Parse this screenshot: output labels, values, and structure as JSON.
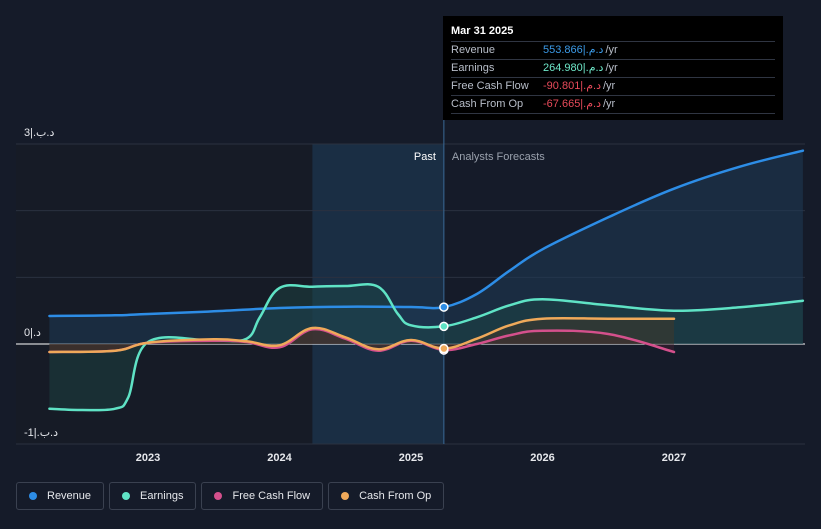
{
  "tooltip": {
    "date": "Mar 31 2025",
    "rows": [
      {
        "label": "Revenue",
        "value": "553.866|.د.م",
        "unit": "/yr",
        "color": "#3b9ae8"
      },
      {
        "label": "Earnings",
        "value": "264.980|.د.م",
        "unit": "/yr",
        "color": "#6fe8c9"
      },
      {
        "label": "Free Cash Flow",
        "value": "-90.801|.د.م",
        "unit": "/yr",
        "color": "#e84a5a"
      },
      {
        "label": "Cash From Op",
        "value": "-67.665|.د.م",
        "unit": "/yr",
        "color": "#e84a5a"
      }
    ]
  },
  "legend": [
    {
      "label": "Revenue",
      "color": "#2d8de6"
    },
    {
      "label": "Earnings",
      "color": "#5fe3c5"
    },
    {
      "label": "Free Cash Flow",
      "color": "#d4508c"
    },
    {
      "label": "Cash From Op",
      "color": "#efa95a"
    }
  ],
  "chart_data": {
    "type": "line",
    "title": "",
    "units": "د.م (billions)",
    "past_label": "Past",
    "forecast_label": "Analysts Forecasts",
    "y_tick_labels": {
      "top": "3|.د.ب",
      "zero": "0|.د",
      "bottom": "-1|.د.ب"
    },
    "ylim": [
      -1,
      3
    ],
    "xlim": [
      2022.25,
      2027.98
    ],
    "past_start": 2024.25,
    "past_end": 2025.25,
    "x_ticks": [
      2023,
      2024,
      2025,
      2026,
      2027
    ],
    "x_tick_labels": [
      "2023",
      "2024",
      "2025",
      "2026",
      "2027"
    ],
    "series": [
      {
        "name": "Revenue",
        "color": "#2d8de6",
        "fill": "#1f3a55",
        "x": [
          2022.25,
          2022.75,
          2023.0,
          2023.5,
          2024.0,
          2024.5,
          2025.0,
          2025.25,
          2025.5,
          2025.75,
          2026.0,
          2026.5,
          2027.0,
          2027.5,
          2027.98
        ],
        "y": [
          0.42,
          0.43,
          0.45,
          0.49,
          0.54,
          0.56,
          0.555,
          0.554,
          0.75,
          1.1,
          1.42,
          1.9,
          2.33,
          2.66,
          2.9
        ],
        "marker_x": 2025.25,
        "marker_y": 0.554
      },
      {
        "name": "Earnings",
        "color": "#5fe3c5",
        "fill": "#1d4a48",
        "x": [
          2022.25,
          2022.5,
          2022.75,
          2022.85,
          2023.0,
          2023.5,
          2023.75,
          2023.85,
          2024.0,
          2024.25,
          2024.5,
          2024.75,
          2024.9,
          2025.0,
          2025.25,
          2025.5,
          2025.75,
          2026.0,
          2026.5,
          2027.0,
          2027.5,
          2027.98
        ],
        "y": [
          -0.97,
          -0.99,
          -0.97,
          -0.8,
          0.03,
          0.05,
          0.08,
          0.4,
          0.84,
          0.86,
          0.87,
          0.86,
          0.45,
          0.28,
          0.265,
          0.4,
          0.58,
          0.67,
          0.58,
          0.5,
          0.55,
          0.65
        ],
        "marker_x": 2025.25,
        "marker_y": 0.265
      },
      {
        "name": "Free Cash Flow",
        "color": "#d4508c",
        "fill": "#4a2230",
        "x": [
          2022.25,
          2022.75,
          2023.0,
          2023.5,
          2023.75,
          2024.0,
          2024.25,
          2024.5,
          2024.75,
          2025.0,
          2025.25,
          2025.5,
          2025.75,
          2026.0,
          2026.5,
          2027.0
        ],
        "y": [
          -0.12,
          -0.1,
          0.02,
          0.05,
          0.03,
          -0.05,
          0.22,
          0.08,
          -0.1,
          0.05,
          -0.09,
          0.0,
          0.13,
          0.2,
          0.15,
          -0.12
        ],
        "marker_x": 2025.25,
        "marker_y": -0.091
      },
      {
        "name": "Cash From Op",
        "color": "#efa95a",
        "fill": "#4a3826",
        "x": [
          2022.25,
          2022.75,
          2023.0,
          2023.5,
          2023.75,
          2024.0,
          2024.25,
          2024.5,
          2024.75,
          2025.0,
          2025.25,
          2025.5,
          2025.75,
          2026.0,
          2026.5,
          2027.0
        ],
        "y": [
          -0.12,
          -0.1,
          0.02,
          0.07,
          0.04,
          -0.02,
          0.24,
          0.1,
          -0.08,
          0.06,
          -0.068,
          0.08,
          0.28,
          0.38,
          0.38,
          0.38
        ],
        "marker_x": 2025.25,
        "marker_y": -0.068
      }
    ]
  }
}
